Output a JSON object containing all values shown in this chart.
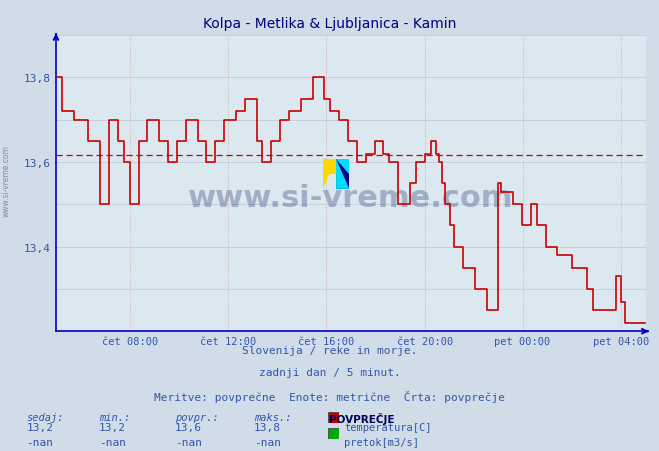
{
  "title": "Kolpa - Metlika & Ljubljanica - Kamin",
  "title_color": "#000080",
  "title_fontsize": 10,
  "bg_color": "#d0dce8",
  "plot_bg_color": "#dce8f0",
  "grid_color_v": "#b0bcc8",
  "grid_color_h": "#c0ccd8",
  "axis_color": "#0000cc",
  "label_color": "#3355aa",
  "watermark_text": "www.si-vreme.com",
  "watermark_color": "#1a2a6a",
  "watermark_alpha": 0.3,
  "footer_line1": "Slovenija / reke in morje.",
  "footer_line2": "zadnji dan / 5 minut.",
  "footer_line3": "Meritve: povprečne  Enote: metrične  Črta: povprečje",
  "footer_color": "#3355aa",
  "footer_fontsize": 8,
  "xlabel_ticks": [
    "čet 08:00",
    "čet 12:00",
    "čet 16:00",
    "čet 20:00",
    "pet 00:00",
    "pet 04:00"
  ],
  "xlabel_positions_frac": [
    0.125,
    0.291,
    0.458,
    0.625,
    0.791,
    0.958
  ],
  "ylim": [
    13.2,
    13.9
  ],
  "ytick_vals": [
    13.4,
    13.6,
    13.8
  ],
  "ytick_labels": [
    "13,4",
    "13,6",
    "13,8"
  ],
  "minor_ytick_vals": [
    13.2,
    13.3,
    13.4,
    13.5,
    13.6,
    13.7,
    13.8,
    13.9
  ],
  "avg_line_y": 13.617,
  "avg_line_color": "#cc0000",
  "legend_title": "POVPREČJE",
  "legend_items": [
    {
      "label": "temperatura[C]",
      "color": "#cc0000"
    },
    {
      "label": "pretok[m3/s]",
      "color": "#00aa00"
    }
  ],
  "stats_headers": [
    "sedaj:",
    "min.:",
    "povpr.:",
    "maks.:"
  ],
  "stats_temp": [
    "13,2",
    "13,2",
    "13,6",
    "13,8"
  ],
  "stats_flow": [
    "-nan",
    "-nan",
    "-nan",
    "-nan"
  ],
  "line_color": "#cc0000",
  "line_width": 1.2,
  "temperature_data": [
    [
      0.0,
      13.8
    ],
    [
      0.01,
      13.8
    ],
    [
      0.01,
      13.72
    ],
    [
      0.03,
      13.72
    ],
    [
      0.03,
      13.7
    ],
    [
      0.055,
      13.7
    ],
    [
      0.055,
      13.65
    ],
    [
      0.075,
      13.65
    ],
    [
      0.075,
      13.5
    ],
    [
      0.09,
      13.5
    ],
    [
      0.09,
      13.7
    ],
    [
      0.105,
      13.7
    ],
    [
      0.105,
      13.65
    ],
    [
      0.115,
      13.65
    ],
    [
      0.115,
      13.6
    ],
    [
      0.125,
      13.6
    ],
    [
      0.125,
      13.5
    ],
    [
      0.14,
      13.5
    ],
    [
      0.14,
      13.65
    ],
    [
      0.155,
      13.65
    ],
    [
      0.155,
      13.7
    ],
    [
      0.175,
      13.7
    ],
    [
      0.175,
      13.65
    ],
    [
      0.19,
      13.65
    ],
    [
      0.19,
      13.6
    ],
    [
      0.205,
      13.6
    ],
    [
      0.205,
      13.65
    ],
    [
      0.22,
      13.65
    ],
    [
      0.22,
      13.7
    ],
    [
      0.24,
      13.7
    ],
    [
      0.24,
      13.65
    ],
    [
      0.255,
      13.65
    ],
    [
      0.255,
      13.6
    ],
    [
      0.27,
      13.6
    ],
    [
      0.27,
      13.65
    ],
    [
      0.285,
      13.65
    ],
    [
      0.285,
      13.7
    ],
    [
      0.305,
      13.7
    ],
    [
      0.305,
      13.72
    ],
    [
      0.32,
      13.72
    ],
    [
      0.32,
      13.75
    ],
    [
      0.34,
      13.75
    ],
    [
      0.34,
      13.65
    ],
    [
      0.35,
      13.65
    ],
    [
      0.35,
      13.6
    ],
    [
      0.365,
      13.6
    ],
    [
      0.365,
      13.65
    ],
    [
      0.38,
      13.65
    ],
    [
      0.38,
      13.7
    ],
    [
      0.395,
      13.7
    ],
    [
      0.395,
      13.72
    ],
    [
      0.415,
      13.72
    ],
    [
      0.415,
      13.75
    ],
    [
      0.435,
      13.75
    ],
    [
      0.435,
      13.8
    ],
    [
      0.455,
      13.8
    ],
    [
      0.455,
      13.75
    ],
    [
      0.465,
      13.75
    ],
    [
      0.465,
      13.72
    ],
    [
      0.48,
      13.72
    ],
    [
      0.48,
      13.7
    ],
    [
      0.495,
      13.7
    ],
    [
      0.495,
      13.65
    ],
    [
      0.51,
      13.65
    ],
    [
      0.51,
      13.6
    ],
    [
      0.525,
      13.6
    ],
    [
      0.525,
      13.62
    ],
    [
      0.54,
      13.62
    ],
    [
      0.54,
      13.65
    ],
    [
      0.555,
      13.65
    ],
    [
      0.555,
      13.62
    ],
    [
      0.565,
      13.62
    ],
    [
      0.565,
      13.6
    ],
    [
      0.58,
      13.6
    ],
    [
      0.58,
      13.5
    ],
    [
      0.6,
      13.5
    ],
    [
      0.6,
      13.55
    ],
    [
      0.61,
      13.55
    ],
    [
      0.61,
      13.6
    ],
    [
      0.625,
      13.6
    ],
    [
      0.625,
      13.62
    ],
    [
      0.635,
      13.62
    ],
    [
      0.635,
      13.65
    ],
    [
      0.645,
      13.65
    ],
    [
      0.645,
      13.62
    ],
    [
      0.65,
      13.62
    ],
    [
      0.65,
      13.6
    ],
    [
      0.655,
      13.6
    ],
    [
      0.655,
      13.55
    ],
    [
      0.66,
      13.55
    ],
    [
      0.66,
      13.5
    ],
    [
      0.668,
      13.5
    ],
    [
      0.668,
      13.45
    ],
    [
      0.675,
      13.45
    ],
    [
      0.675,
      13.4
    ],
    [
      0.69,
      13.4
    ],
    [
      0.69,
      13.35
    ],
    [
      0.71,
      13.35
    ],
    [
      0.71,
      13.3
    ],
    [
      0.73,
      13.3
    ],
    [
      0.73,
      13.25
    ],
    [
      0.75,
      13.25
    ],
    [
      0.75,
      13.55
    ],
    [
      0.755,
      13.55
    ],
    [
      0.755,
      13.53
    ],
    [
      0.775,
      13.53
    ],
    [
      0.775,
      13.5
    ],
    [
      0.79,
      13.5
    ],
    [
      0.79,
      13.45
    ],
    [
      0.805,
      13.45
    ],
    [
      0.805,
      13.5
    ],
    [
      0.815,
      13.5
    ],
    [
      0.815,
      13.45
    ],
    [
      0.83,
      13.45
    ],
    [
      0.83,
      13.4
    ],
    [
      0.85,
      13.4
    ],
    [
      0.85,
      13.38
    ],
    [
      0.875,
      13.38
    ],
    [
      0.875,
      13.35
    ],
    [
      0.9,
      13.35
    ],
    [
      0.9,
      13.3
    ],
    [
      0.91,
      13.3
    ],
    [
      0.91,
      13.25
    ],
    [
      0.95,
      13.25
    ],
    [
      0.95,
      13.33
    ],
    [
      0.958,
      13.33
    ],
    [
      0.958,
      13.27
    ],
    [
      0.965,
      13.27
    ],
    [
      0.965,
      13.22
    ],
    [
      1.0,
      13.22
    ]
  ]
}
